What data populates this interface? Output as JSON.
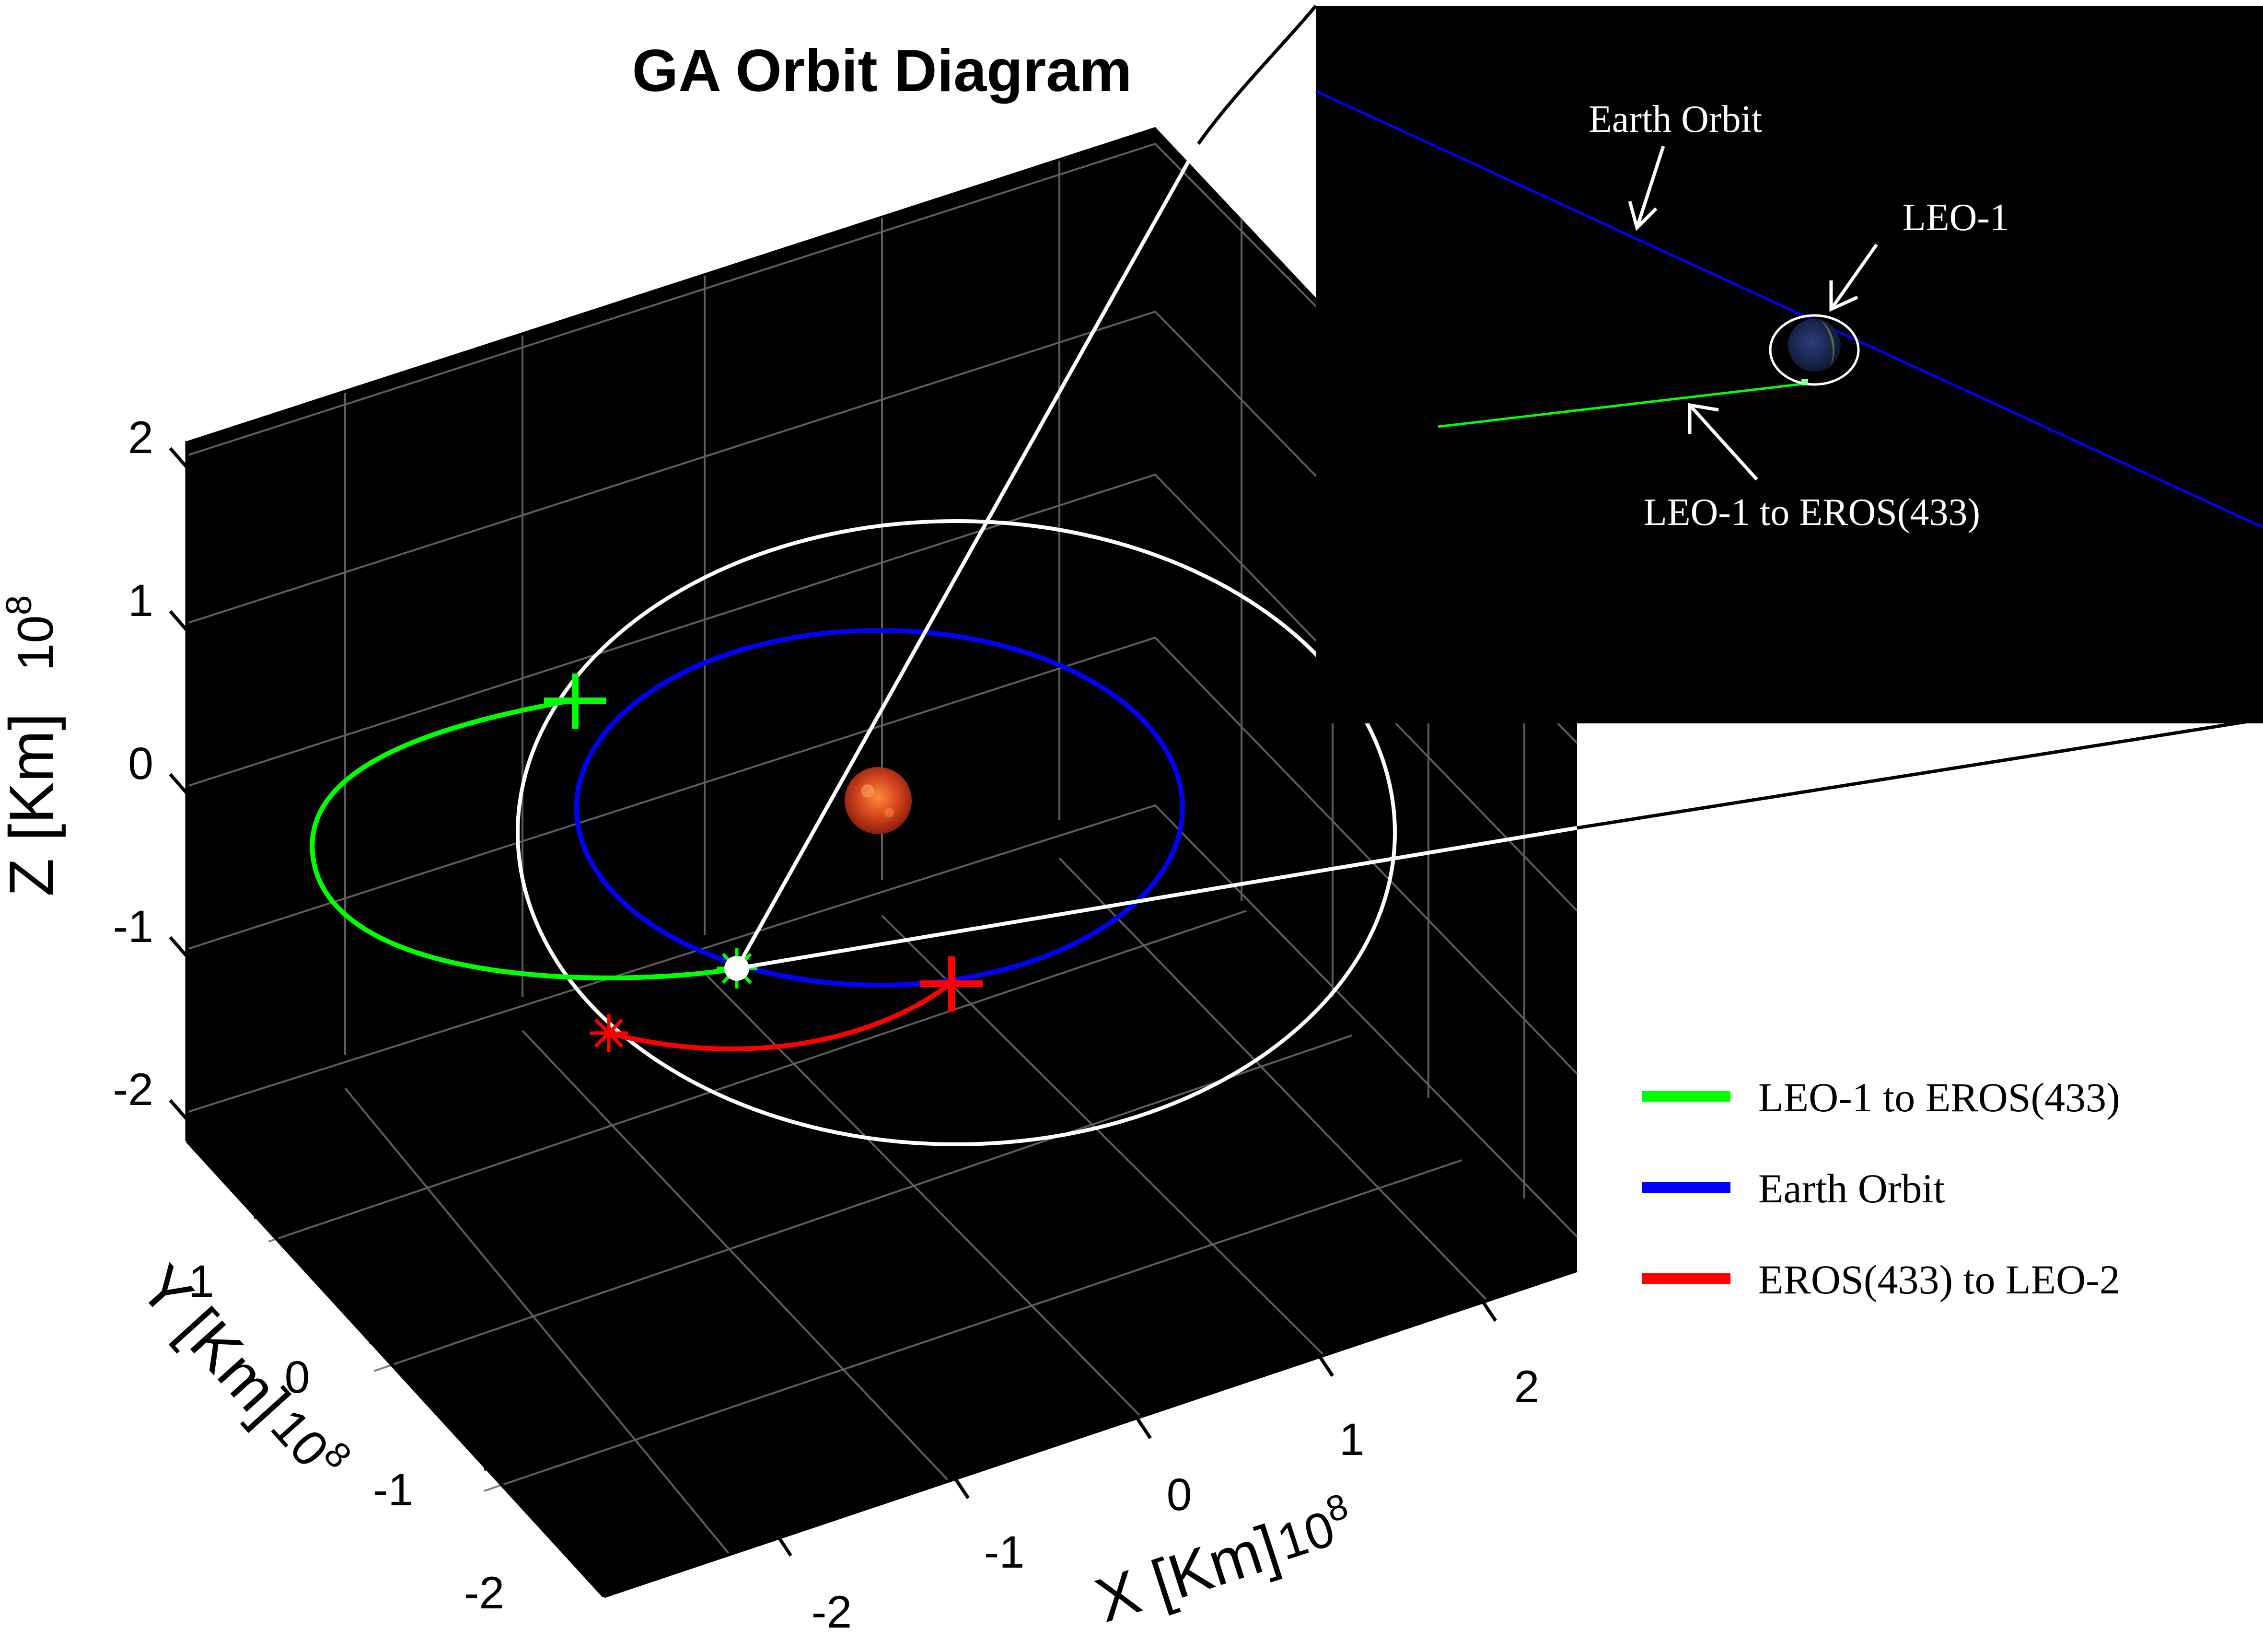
{
  "chart_data": {
    "type": "3d-line",
    "title": "GA Orbit Diagram",
    "xlabel": "X [Km]",
    "ylabel": "Y [Km]",
    "zlabel": "Z [Km]",
    "x_exponent_label": "10",
    "x_exponent": "8",
    "y_exponent_label": "10",
    "y_exponent": "8",
    "z_exponent_label": "10",
    "z_exponent": "8",
    "x_ticks": [
      "-2",
      "-1",
      "0",
      "1",
      "2"
    ],
    "y_ticks": [
      "-2",
      "-1",
      "0",
      "1"
    ],
    "z_ticks": [
      "-2",
      "-1",
      "0",
      "1",
      "2"
    ],
    "xlim": [
      -2.5,
      2.5
    ],
    "ylim": [
      -2.5,
      1.5
    ],
    "zlim": [
      -2.2,
      2.2
    ],
    "grid": true,
    "background": "#000000",
    "series": [
      {
        "name": "LEO-1 to EROS(433)",
        "color": "#00ff00"
      },
      {
        "name": "Earth Orbit",
        "color": "#0000ff"
      },
      {
        "name": "EROS(433) to LEO-2",
        "color": "#ff0000"
      }
    ],
    "unlabeled_series": [
      {
        "description": "asteroid orbit",
        "color": "#ffffff"
      }
    ],
    "legend_placement": "right"
  },
  "inset": {
    "labels": {
      "earth_orbit": "Earth Orbit",
      "leo1": "LEO-1",
      "transfer": "LEO-1 to EROS(433)"
    }
  },
  "colors": {
    "plot_background": "#000000",
    "grid": "#6e6e6e",
    "sun": "#d2451e",
    "earth": "#1c2a5a"
  }
}
